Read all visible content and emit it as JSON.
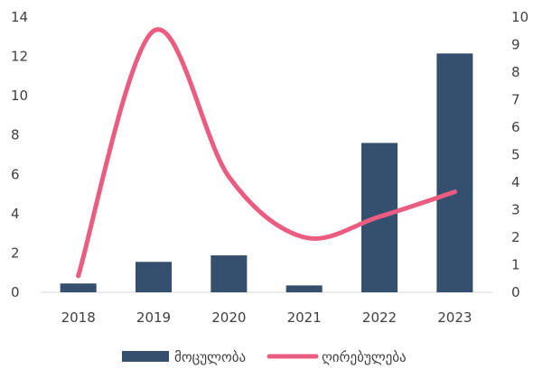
{
  "chart_data": {
    "type": "bar+line",
    "categories": [
      "2018",
      "2019",
      "2020",
      "2021",
      "2022",
      "2023"
    ],
    "series": [
      {
        "name": "მოცულობა",
        "type": "bar",
        "axis": "left",
        "color": "#34506e",
        "values": [
          0.45,
          1.55,
          1.88,
          0.35,
          7.6,
          12.15
        ]
      },
      {
        "name": "ღირებულება",
        "type": "line",
        "axis": "right",
        "smooth": true,
        "color": "#ea5c80",
        "values": [
          0.6,
          9.5,
          4.2,
          2.0,
          2.75,
          3.65
        ]
      }
    ],
    "left_axis": {
      "min": 0,
      "max": 14,
      "ticks": [
        "0",
        "2",
        "4",
        "6",
        "8",
        "10",
        "12",
        "14"
      ]
    },
    "right_axis": {
      "min": 0,
      "max": 10,
      "ticks": [
        "0",
        "1",
        "2",
        "3",
        "4",
        "5",
        "6",
        "7",
        "8",
        "9",
        "10"
      ]
    },
    "title": "",
    "xlabel": "",
    "ylabel": "",
    "grid": false,
    "legend": "bottom"
  }
}
